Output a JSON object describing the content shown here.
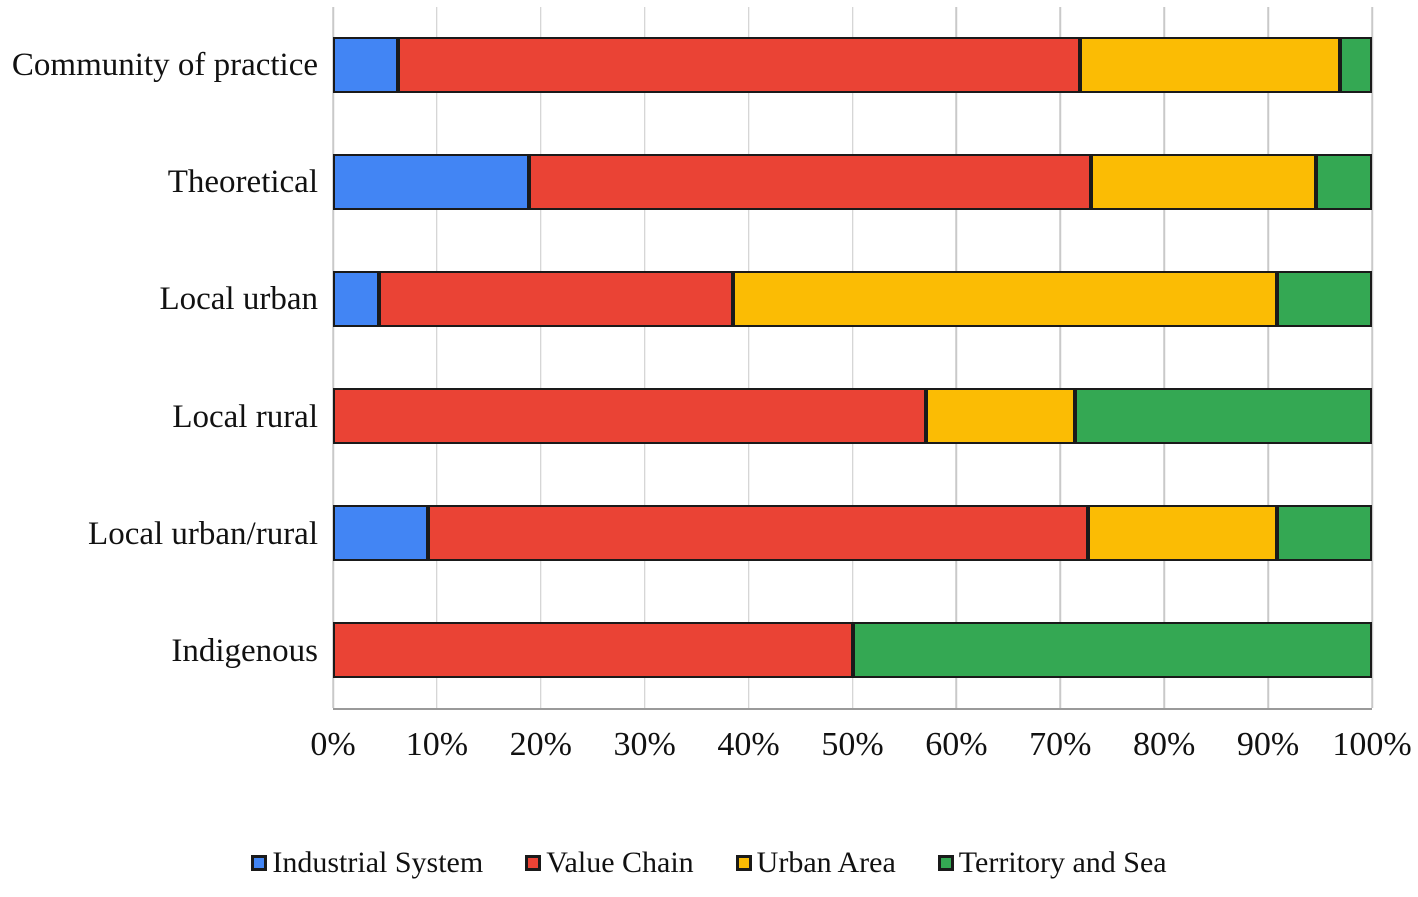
{
  "chart_data": {
    "type": "bar",
    "orientation": "horizontal",
    "stacked": true,
    "stack_total_percent": 100,
    "title": "",
    "xlabel": "",
    "ylabel": "",
    "xlim": [
      0,
      100
    ],
    "grid": "vertical",
    "legend_position": "bottom",
    "categories": [
      "Community of practice",
      "Theoretical",
      "Local urban",
      "Local rural",
      "Local urban/rural",
      "Indigenous"
    ],
    "series": [
      {
        "name": "Industrial System",
        "color": "#4285F4",
        "values": [
          6.3,
          18.9,
          4.4,
          0,
          9.1,
          0
        ]
      },
      {
        "name": "Value Chain",
        "color": "#EA4335",
        "values": [
          65.6,
          54.1,
          34.1,
          57.1,
          63.6,
          50
        ]
      },
      {
        "name": "Urban Area",
        "color": "#FBBC04",
        "values": [
          25.0,
          21.6,
          52.4,
          14.3,
          18.2,
          0
        ]
      },
      {
        "name": "Territory and Sea",
        "color": "#34A853",
        "values": [
          3.1,
          5.4,
          9.1,
          28.6,
          9.1,
          50
        ]
      }
    ],
    "x_ticks": [
      "0%",
      "10%",
      "20%",
      "30%",
      "40%",
      "50%",
      "60%",
      "70%",
      "80%",
      "90%",
      "100%"
    ],
    "x_tick_values": [
      0,
      10,
      20,
      30,
      40,
      50,
      60,
      70,
      80,
      90,
      100
    ],
    "colors": {
      "bar_border": "#1a1a1a",
      "gridline": "#c9c9c9",
      "axis_line": "#9a9a9a",
      "text": "#111111",
      "background": "#ffffff"
    }
  }
}
